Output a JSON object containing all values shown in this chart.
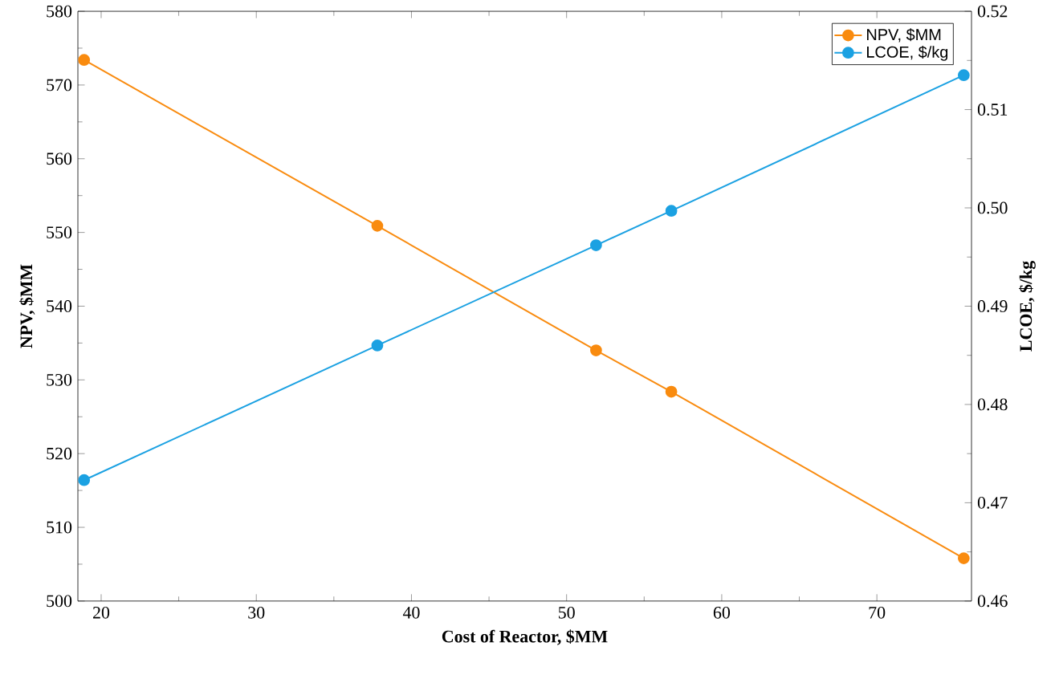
{
  "chart_data": {
    "type": "line",
    "xlabel": "Cost of Reactor, $MM",
    "ylabel": "NPV, $MM",
    "y2label": "LCOE, $/kg",
    "xlim": [
      18.5,
      76.1
    ],
    "xticks": [
      20,
      30,
      40,
      50,
      60,
      70
    ],
    "ylim": [
      500,
      580
    ],
    "yticks": [
      500,
      510,
      520,
      530,
      540,
      550,
      560,
      570,
      580
    ],
    "y2lim": [
      0.46,
      0.52
    ],
    "y2ticks": [
      {
        "value": 0.46,
        "label": "0.46"
      },
      {
        "value": 0.47,
        "label": "0.47"
      },
      {
        "value": 0.48,
        "label": "0.48"
      },
      {
        "value": 0.49,
        "label": "0.49"
      },
      {
        "value": 0.5,
        "label": "0.50"
      },
      {
        "value": 0.51,
        "label": "0.51"
      },
      {
        "value": 0.52,
        "label": "0.52"
      }
    ],
    "x": [
      18.9,
      37.8,
      51.9,
      56.75,
      75.6
    ],
    "series": [
      {
        "name": "NPV, $MM",
        "color": "#f98b0f",
        "values": [
          573.4,
          550.9,
          534.0,
          528.4,
          505.8
        ]
      },
      {
        "name": "LCOE, $/kg",
        "color": "#1ba1e2",
        "axis": "y2",
        "values": [
          0.4723,
          0.486,
          0.4962,
          0.4997,
          0.5135
        ]
      }
    ],
    "marker": "circle",
    "line_style": "solid",
    "legend": "top right",
    "grid": false
  }
}
